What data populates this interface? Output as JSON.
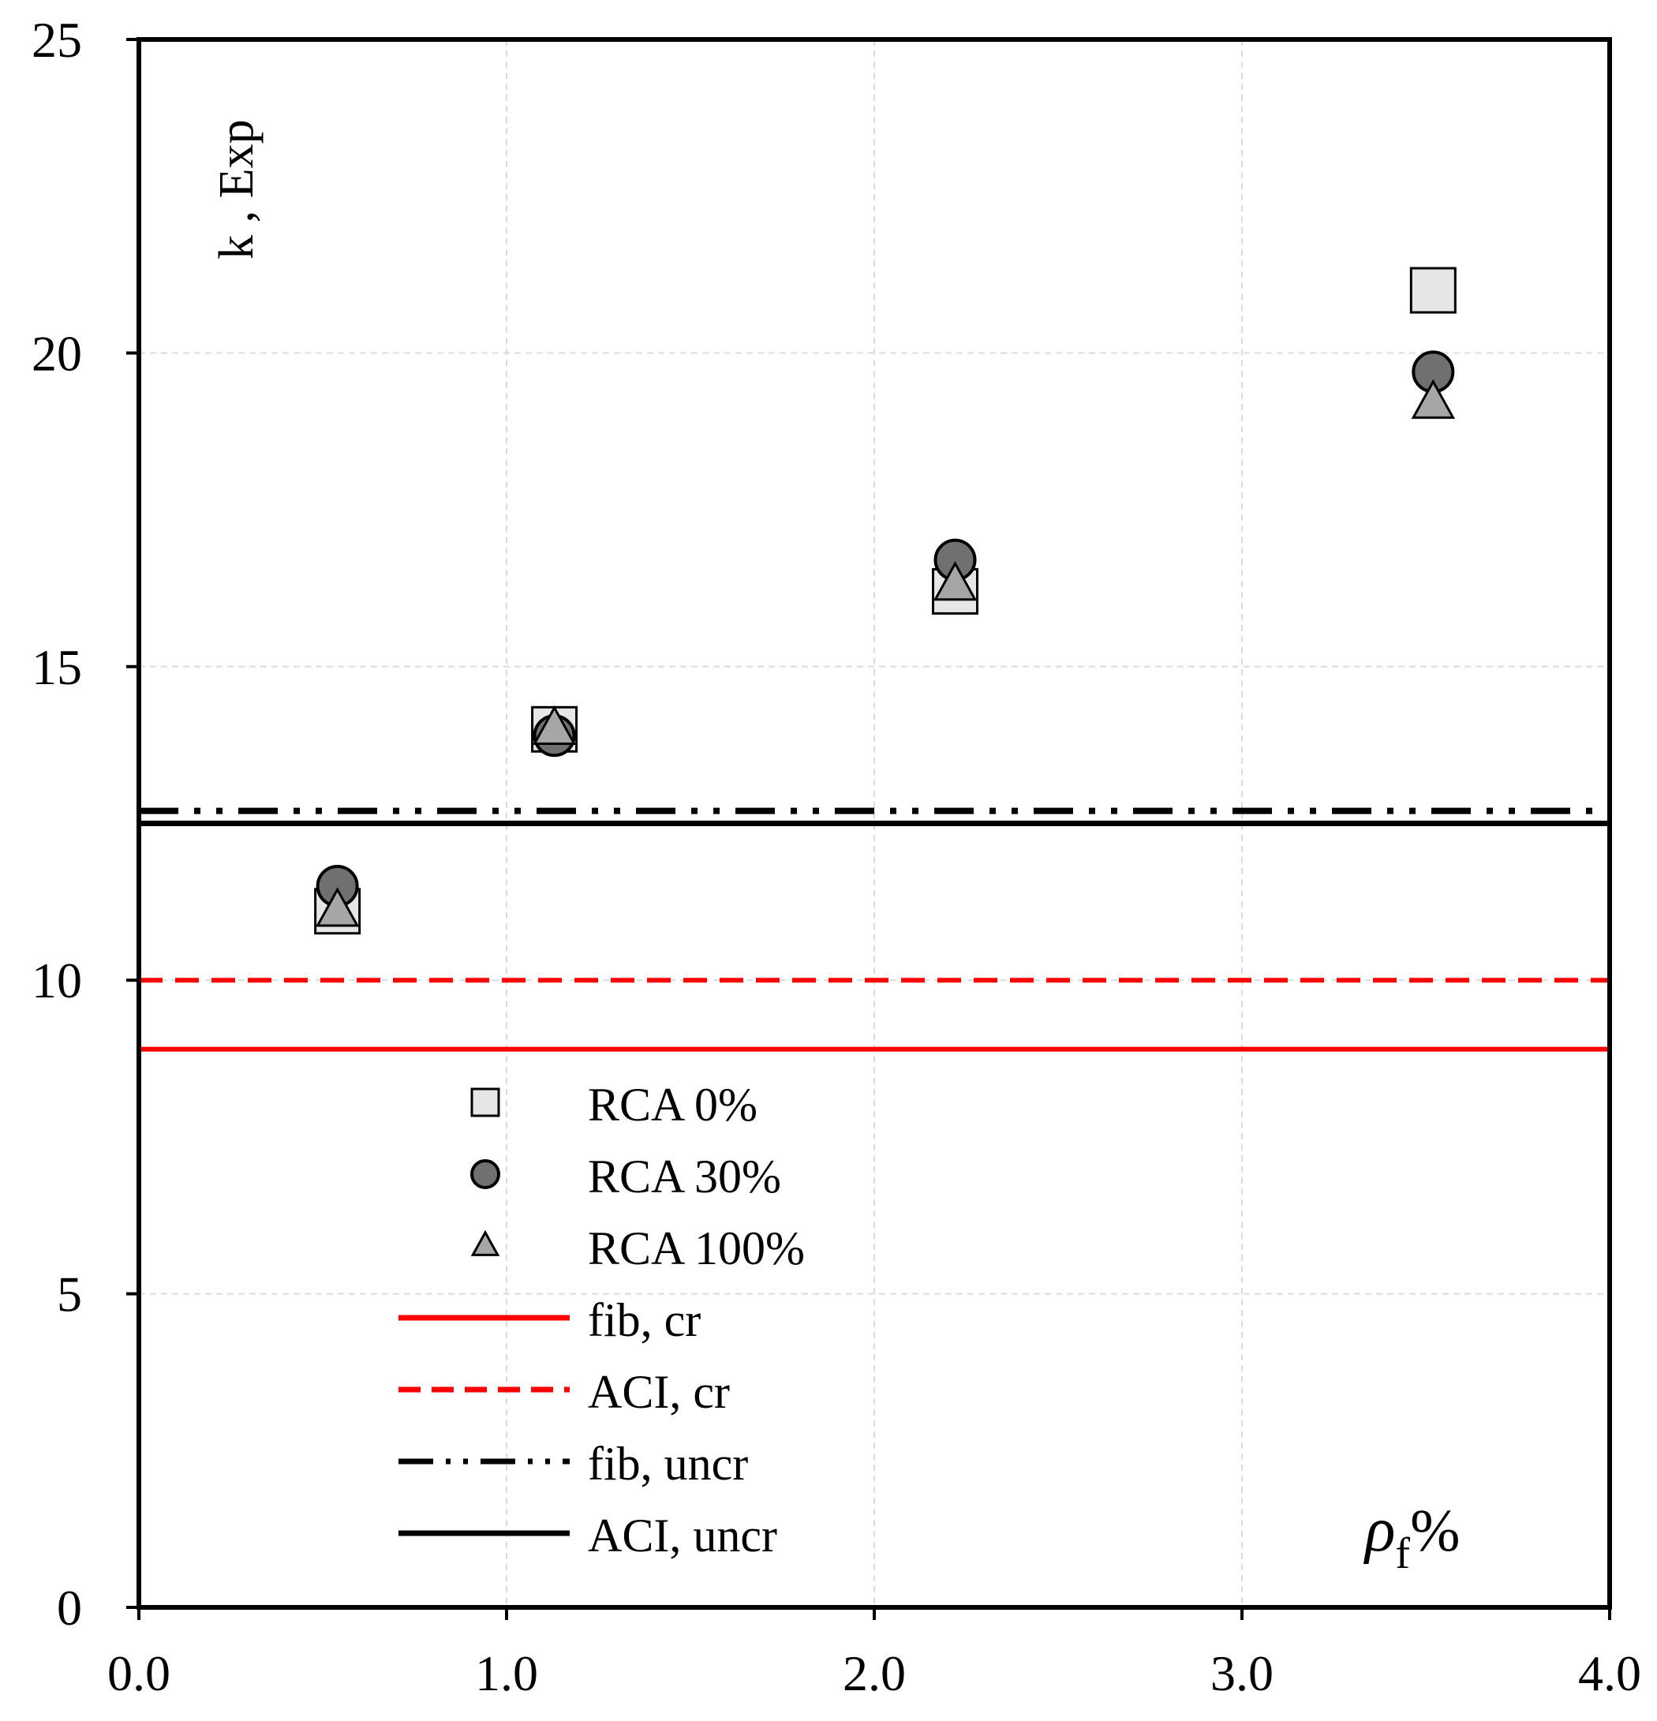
{
  "chart_data": {
    "type": "scatter",
    "title": "",
    "ylabel": "k , Exp",
    "xlabel": {
      "symbol": "ρ",
      "subscript": "f",
      "suffix": "%"
    },
    "xlim": [
      0,
      4
    ],
    "ylim": [
      0,
      25
    ],
    "xticks": [
      "0.0",
      "1.0",
      "2.0",
      "3.0",
      "4.0"
    ],
    "xtick_values": [
      0,
      1,
      2,
      3,
      4
    ],
    "yticks": [
      "0",
      "5",
      "10",
      "15",
      "20",
      "25"
    ],
    "ytick_values": [
      0,
      5,
      10,
      15,
      20,
      25
    ],
    "grid": true,
    "series": [
      {
        "name": "RCA 0%",
        "marker": "square",
        "fill": "#e6e6e6",
        "x": [
          0.54,
          1.13,
          2.22,
          3.52
        ],
        "y": [
          11.1,
          14.0,
          16.2,
          21.0
        ]
      },
      {
        "name": "RCA 30%",
        "marker": "circle",
        "fill": "#707070",
        "x": [
          0.54,
          1.13,
          2.22,
          3.52
        ],
        "y": [
          11.5,
          13.9,
          16.7,
          19.7
        ]
      },
      {
        "name": "RCA 100%",
        "marker": "triangle",
        "fill": "#a6a6a6",
        "x": [
          0.54,
          1.13,
          2.22,
          3.52
        ],
        "y": [
          11.1,
          14.0,
          16.3,
          19.2
        ]
      }
    ],
    "reference_lines": [
      {
        "name": "fib, cr",
        "y": 8.9,
        "color": "#ff0000",
        "style": "solid"
      },
      {
        "name": "ACI, cr",
        "y": 10.0,
        "color": "#ff0000",
        "style": "dashed"
      },
      {
        "name": "fib, uncr",
        "y": 12.7,
        "color": "#000000",
        "style": "dash-dot-dot"
      },
      {
        "name": "ACI, uncr",
        "y": 12.5,
        "color": "#000000",
        "style": "solid"
      }
    ],
    "legend_position": "lower-left inside"
  }
}
